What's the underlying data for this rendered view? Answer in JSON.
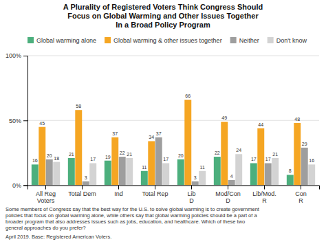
{
  "chart_data": {
    "type": "bar",
    "title": "A Plurality of Registered Voters Think Congress Should\nFocus on Global Warming and Other Issues Together\nIn a Broad Policy Program",
    "categories": [
      "All Reg\nVoters",
      "Total Dem",
      "Ind",
      "Total Rep",
      "Lib\nD",
      "Mod/Con\nD",
      "Lib/Mod.\nR",
      "Con\nR"
    ],
    "series": [
      {
        "name": "Global warming alone",
        "color": "#4caf7d",
        "values": [
          16,
          21,
          19,
          11,
          20,
          22,
          17,
          8
        ]
      },
      {
        "name": "Global warming & other issues together",
        "color": "#f5a623",
        "values": [
          45,
          58,
          37,
          34,
          66,
          49,
          44,
          48
        ]
      },
      {
        "name": "Neither",
        "color": "#9e9e9e",
        "values": [
          20,
          3,
          22,
          37,
          3,
          4,
          17,
          29
        ]
      },
      {
        "name": "Don't know",
        "color": "#d3d3d3",
        "values": [
          18,
          17,
          21,
          17,
          11,
          24,
          21,
          16
        ]
      }
    ],
    "ylim": [
      0,
      100
    ],
    "yticks": [
      {
        "value": 0,
        "label": "0%"
      },
      {
        "value": 50,
        "label": "50%"
      },
      {
        "value": 100,
        "label": "100%"
      }
    ],
    "grid": true,
    "legend": "top",
    "data_labels": true,
    "annotations": [
      "Some members of Congress say that the best way for the U.S. to solve global warming is to create government\npolicies that focus on global warming alone, while others say that global warming policies should be a part of a\nbroader program that also addresses issues such as jobs, education, and healthcare. Which of these two\ngeneral approaches do you prefer?",
      "April 2019. Base: Registered American Voters."
    ]
  }
}
